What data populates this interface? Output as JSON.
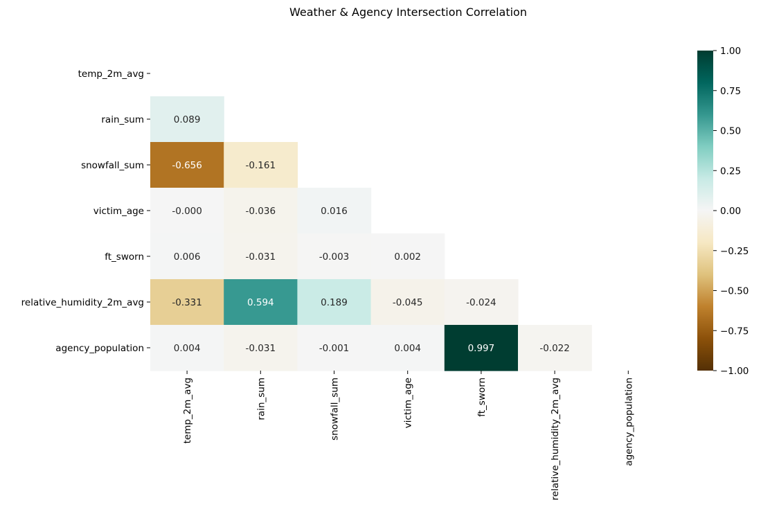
{
  "chart_data": {
    "type": "heatmap",
    "title": "Weather & Agency Intersection Correlation",
    "variables": [
      "temp_2m_avg",
      "rain_sum",
      "snowfall_sum",
      "victim_age",
      "ft_sworn",
      "relative_humidity_2m_avg",
      "agency_population"
    ],
    "mask": "upper-triangle-including-diagonal",
    "matrix": [
      [
        null,
        null,
        null,
        null,
        null,
        null,
        null
      ],
      [
        0.089,
        null,
        null,
        null,
        null,
        null,
        null
      ],
      [
        -0.656,
        -0.161,
        null,
        null,
        null,
        null,
        null
      ],
      [
        -0.0,
        -0.036,
        0.016,
        null,
        null,
        null,
        null
      ],
      [
        0.006,
        -0.031,
        -0.003,
        0.002,
        null,
        null,
        null
      ],
      [
        -0.331,
        0.594,
        0.189,
        -0.045,
        -0.024,
        null,
        null
      ],
      [
        0.004,
        -0.031,
        -0.001,
        0.004,
        0.997,
        -0.022,
        null
      ]
    ],
    "labels": [
      [
        null,
        null,
        null,
        null,
        null,
        null,
        null
      ],
      [
        "0.089",
        null,
        null,
        null,
        null,
        null,
        null
      ],
      [
        "-0.656",
        "-0.161",
        null,
        null,
        null,
        null,
        null
      ],
      [
        "-0.000",
        "-0.036",
        "0.016",
        null,
        null,
        null,
        null
      ],
      [
        "0.006",
        "-0.031",
        "-0.003",
        "0.002",
        null,
        null,
        null
      ],
      [
        "-0.331",
        "0.594",
        "0.189",
        "-0.045",
        "-0.024",
        null,
        null
      ],
      [
        "0.004",
        "-0.031",
        "-0.001",
        "0.004",
        "0.997",
        "-0.022",
        null
      ]
    ],
    "colormap": "BrBG",
    "colormap_stops": [
      "#543005",
      "#8c510a",
      "#bf812d",
      "#dfc27d",
      "#f6e8c3",
      "#f5f5f5",
      "#c7eae5",
      "#80cdc1",
      "#35978f",
      "#01665e",
      "#003c30"
    ],
    "vmin": -1.0,
    "vmax": 1.0,
    "colorbar_ticks": [
      1.0,
      0.75,
      0.5,
      0.25,
      0.0,
      -0.25,
      -0.5,
      -0.75,
      -1.0
    ],
    "colorbar_tick_labels": [
      "1.00",
      "0.75",
      "0.50",
      "0.25",
      "0.00",
      "−0.25",
      "−0.50",
      "−0.75",
      "−1.00"
    ],
    "light_text_color": "#ffffff",
    "dark_text_color": "#262626"
  }
}
